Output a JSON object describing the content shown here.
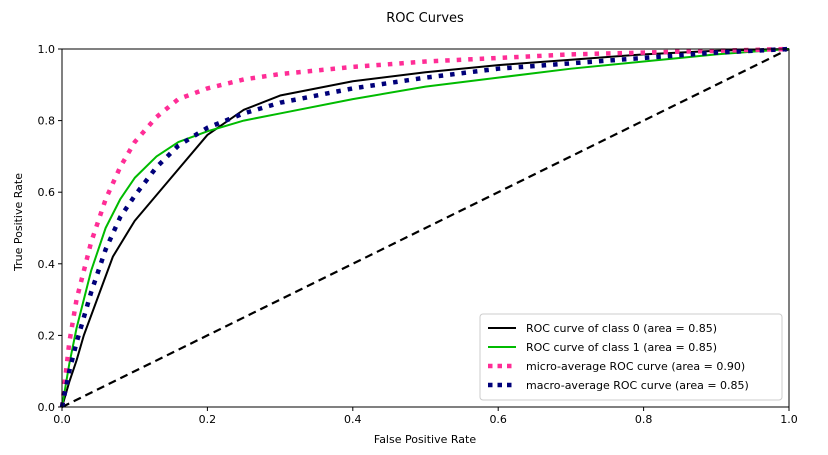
{
  "chart_data": {
    "type": "line",
    "title": "ROC Curves",
    "xlabel": "False Positive Rate",
    "ylabel": "True Positive Rate",
    "xlim": [
      0.0,
      1.0
    ],
    "ylim": [
      0.0,
      1.0
    ],
    "xticks": [
      0.0,
      0.2,
      0.4,
      0.6,
      0.8,
      1.0
    ],
    "xtick_labels": [
      "0.0",
      "0.2",
      "0.4",
      "0.6",
      "0.8",
      "1.0"
    ],
    "yticks": [
      0.0,
      0.2,
      0.4,
      0.6,
      0.8,
      1.0
    ],
    "ytick_labels": [
      "0.0",
      "0.2",
      "0.4",
      "0.6",
      "0.8",
      "1.0"
    ],
    "grid": false,
    "legend_position": "lower-right",
    "series": [
      {
        "name": "ROC curve of class 0 (area = 0.85)",
        "color": "#000000",
        "style": "solid",
        "x": [
          0.0,
          0.01,
          0.02,
          0.03,
          0.05,
          0.07,
          0.1,
          0.15,
          0.2,
          0.25,
          0.3,
          0.4,
          0.5,
          0.6,
          0.7,
          0.8,
          0.9,
          0.95,
          1.0
        ],
        "y": [
          0.0,
          0.07,
          0.13,
          0.2,
          0.31,
          0.42,
          0.52,
          0.64,
          0.76,
          0.83,
          0.87,
          0.91,
          0.935,
          0.955,
          0.97,
          0.985,
          0.995,
          0.998,
          1.0
        ]
      },
      {
        "name": "ROC curve of class 1 (area = 0.85)",
        "color": "#00bb00",
        "style": "solid",
        "x": [
          0.0,
          0.01,
          0.02,
          0.04,
          0.06,
          0.08,
          0.1,
          0.13,
          0.16,
          0.2,
          0.25,
          0.3,
          0.4,
          0.5,
          0.6,
          0.7,
          0.8,
          0.9,
          1.0
        ],
        "y": [
          0.0,
          0.12,
          0.22,
          0.38,
          0.5,
          0.58,
          0.64,
          0.7,
          0.74,
          0.77,
          0.8,
          0.82,
          0.86,
          0.895,
          0.92,
          0.945,
          0.965,
          0.985,
          1.0
        ]
      },
      {
        "name": "micro-average ROC curve (area = 0.90)",
        "color": "#ff2d96",
        "style": "dotted",
        "x": [
          0.0,
          0.01,
          0.02,
          0.04,
          0.06,
          0.08,
          0.1,
          0.13,
          0.16,
          0.2,
          0.25,
          0.3,
          0.4,
          0.5,
          0.6,
          0.7,
          0.8,
          0.9,
          1.0
        ],
        "y": [
          0.0,
          0.18,
          0.3,
          0.46,
          0.58,
          0.67,
          0.74,
          0.81,
          0.86,
          0.89,
          0.915,
          0.93,
          0.95,
          0.965,
          0.975,
          0.985,
          0.99,
          0.995,
          1.0
        ]
      },
      {
        "name": "macro-average ROC curve (area = 0.85)",
        "color": "#00007a",
        "style": "dotted",
        "x": [
          0.0,
          0.01,
          0.02,
          0.04,
          0.06,
          0.08,
          0.1,
          0.13,
          0.16,
          0.2,
          0.25,
          0.3,
          0.4,
          0.5,
          0.6,
          0.7,
          0.8,
          0.9,
          1.0
        ],
        "y": [
          0.0,
          0.1,
          0.18,
          0.32,
          0.44,
          0.53,
          0.59,
          0.67,
          0.73,
          0.78,
          0.82,
          0.85,
          0.89,
          0.92,
          0.945,
          0.96,
          0.975,
          0.99,
          1.0
        ]
      },
      {
        "name": "",
        "color": "#000000",
        "style": "dashed",
        "x": [
          0.0,
          1.0
        ],
        "y": [
          0.0,
          1.0
        ]
      }
    ]
  }
}
